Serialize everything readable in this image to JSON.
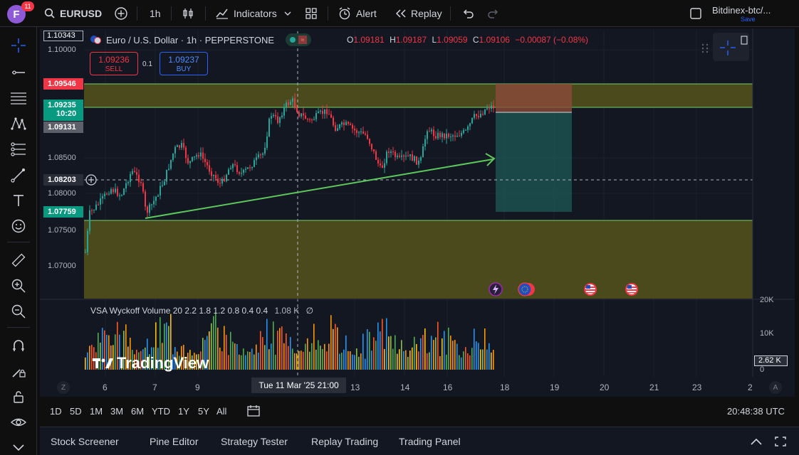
{
  "topbar": {
    "avatar_letter": "F",
    "notification_count": "11",
    "symbol": "EURUSD",
    "interval": "1h",
    "indicators_label": "Indicators",
    "alert_label": "Alert",
    "replay_label": "Replay",
    "layout_name": "Bitdinex-btc/...",
    "save_label": "Save"
  },
  "legend": {
    "title": "Euro / U.S. Dollar · 1h · PEPPERSTONE",
    "o_key": "O",
    "o_val": "1.09181",
    "h_key": "H",
    "h_val": "1.09187",
    "l_key": "L",
    "l_val": "1.09059",
    "c_key": "C",
    "c_val": "1.09106",
    "change": "−0.00087 (−0.08%)"
  },
  "trade": {
    "sell_price": "1.09236",
    "sell_label": "SELL",
    "spread": "0.1",
    "buy_price": "1.09237",
    "buy_label": "BUY"
  },
  "price_axis": {
    "labels": [
      {
        "text": "1.10343",
        "top": 44
      },
      {
        "text": "1.10000",
        "top": 64
      },
      {
        "text": "1.08500",
        "top": 216
      },
      {
        "text": "1.08000",
        "top": 266
      },
      {
        "text": "1.07500",
        "top": 318
      },
      {
        "text": "1.07000",
        "top": 368
      }
    ],
    "tag_upper": "1.09546",
    "tag_current": "1.09235",
    "tag_countdown": "10:20",
    "tag_prev": "1.09131",
    "tag_cursor": "1.08203",
    "tag_lower": "1.07759"
  },
  "indicator": {
    "label": "VSA Wyckoff Volume 20 2.2 1.8 1.2 0.8 0.4 0.4",
    "value": "1.08 K",
    "empty": "∅",
    "axis_20k": "20K",
    "axis_10k": "10K",
    "axis_0": "0",
    "current": "2.62 K"
  },
  "time_axis": {
    "labels": [
      "6",
      "7",
      "9",
      "13",
      "14",
      "16",
      "18",
      "19",
      "20",
      "21",
      "23",
      "2"
    ],
    "cursor_label": "Tue 11 Mar '25   21:00",
    "z_label": "Z",
    "a_label": "A"
  },
  "range_bar": {
    "items": [
      "1D",
      "5D",
      "1M",
      "3M",
      "6M",
      "YTD",
      "1Y",
      "5Y",
      "All"
    ],
    "clock": "20:48:38 UTC"
  },
  "bottom_bar": {
    "items": [
      "Stock Screener",
      "Pine Editor",
      "Strategy Tester",
      "Replay Trading",
      "Trading Panel"
    ]
  },
  "watermark": "TradingView",
  "colors": {
    "up": "#26a69a",
    "down": "#f23645",
    "zone_fill": "#4a4a1c",
    "zone_line": "#6fd36f",
    "trend": "#5cc85c"
  }
}
